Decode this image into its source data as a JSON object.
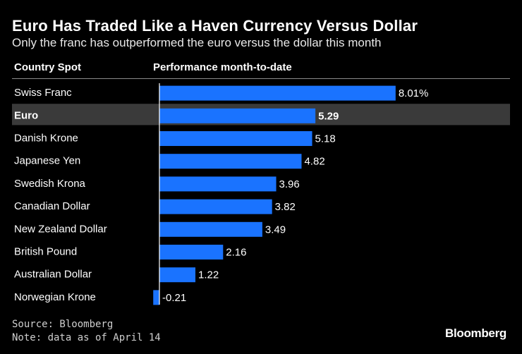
{
  "chart_data": {
    "type": "bar",
    "orientation": "horizontal",
    "title": "Euro Has Traded Like a Haven Currency Versus Dollar",
    "subtitle": "Only the franc has outperformed the euro versus the dollar this month",
    "category_header": "Country Spot",
    "value_header": "Performance month-to-date",
    "categories": [
      "Swiss Franc",
      "Euro",
      "Danish Krone",
      "Japanese Yen",
      "Swedish Krona",
      "Canadian Dollar",
      "New Zealand Dollar",
      "British Pound",
      "Australian Dollar",
      "Norwegian Krone"
    ],
    "values": [
      8.01,
      5.29,
      5.18,
      4.82,
      3.96,
      3.82,
      3.49,
      2.16,
      1.22,
      -0.21
    ],
    "value_labels": [
      "8.01%",
      "5.29",
      "5.18",
      "4.82",
      "3.96",
      "3.82",
      "3.49",
      "2.16",
      "1.22",
      "-0.21"
    ],
    "highlighted": "Euro",
    "xlim": [
      -0.21,
      8.01
    ]
  },
  "colors": {
    "bar": "#1a73ff",
    "highlight_row": "#3a3a3a",
    "axis": "#ffffff"
  },
  "footer": {
    "source": "Source: Bloomberg",
    "note": "Note: data as of April 14",
    "brand": "Bloomberg"
  }
}
